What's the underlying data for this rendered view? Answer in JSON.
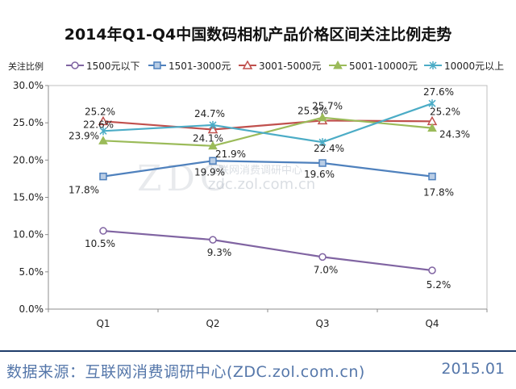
{
  "chart_data": {
    "type": "line",
    "title": "2014年Q1-Q4中国数码相机产品价格区间关注比例走势",
    "ylabel": "关注比例",
    "xlabel": "",
    "categories": [
      "Q1",
      "Q2",
      "Q3",
      "Q4"
    ],
    "ylim": [
      0,
      30
    ],
    "yticks": [
      "0.0%",
      "5.0%",
      "10.0%",
      "15.0%",
      "20.0%",
      "25.0%",
      "30.0%"
    ],
    "grid": false,
    "legend_position": "top",
    "series": [
      {
        "name": "1500元以下",
        "values": [
          10.5,
          9.3,
          7.0,
          5.2
        ],
        "labels": [
          "10.5%",
          "9.3%",
          "7.0%",
          "5.2%"
        ],
        "color": "#8064a2",
        "marker": "circle"
      },
      {
        "name": "1501-3000元",
        "values": [
          17.8,
          19.9,
          19.6,
          17.8
        ],
        "labels": [
          "17.8%",
          "19.9%",
          "19.6%",
          "17.8%"
        ],
        "color": "#4f81bd",
        "marker": "square"
      },
      {
        "name": "3001-5000元",
        "values": [
          25.2,
          24.1,
          25.3,
          25.2
        ],
        "labels": [
          "25.2%",
          "24.1%",
          "25.3%",
          "25.2%"
        ],
        "color": "#c0504d",
        "marker": "triangle-open"
      },
      {
        "name": "5001-10000元",
        "values": [
          22.6,
          21.9,
          25.7,
          24.3
        ],
        "labels": [
          "22.6%",
          "21.9%",
          "25.7%",
          "24.3%"
        ],
        "color": "#9bbb59",
        "marker": "triangle"
      },
      {
        "name": "10000元以上",
        "values": [
          23.9,
          24.7,
          22.4,
          27.6
        ],
        "labels": [
          "23.9%",
          "24.7%",
          "22.4%",
          "27.6%"
        ],
        "color": "#4bacc6",
        "marker": "asterisk"
      }
    ]
  },
  "watermark": {
    "main": "ZDC",
    "line1": "互联网消费调研中心",
    "line2": "zdc.zol.com.cn"
  },
  "footer": {
    "source": "数据来源：互联网消费调研中心(ZDC.zol.com.cn)",
    "date": "2015.01"
  }
}
